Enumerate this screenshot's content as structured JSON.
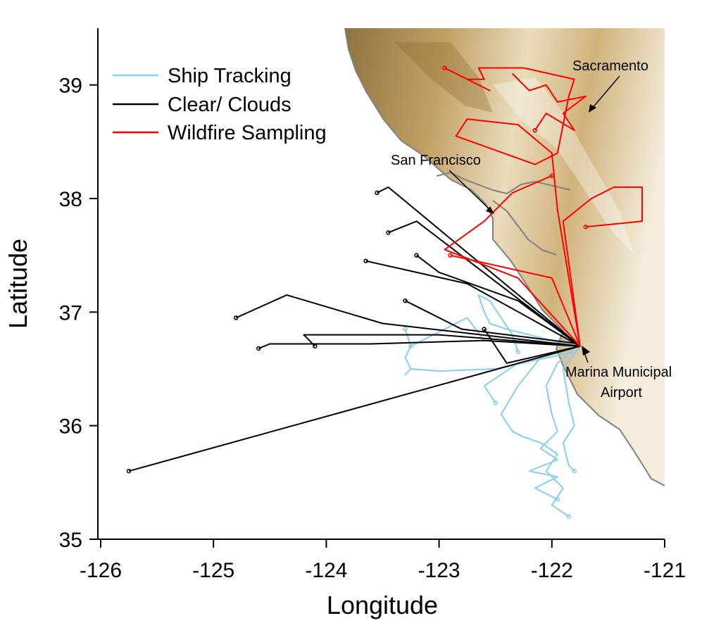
{
  "chart_data": {
    "type": "line",
    "xlabel": "Longitude",
    "ylabel": "Latitude",
    "xlim": [
      -126,
      -121
    ],
    "ylim": [
      35,
      39.5
    ],
    "xticks": [
      -126,
      -125,
      -124,
      -123,
      -122,
      -121
    ],
    "yticks": [
      35,
      36,
      37,
      38,
      39
    ],
    "xtick_labels": [
      "-126",
      "-125",
      "-124",
      "-123",
      "-122",
      "-121"
    ],
    "ytick_labels": [
      "35",
      "36",
      "37",
      "38",
      "39"
    ],
    "legend_position": "top-left",
    "series": [
      {
        "name": "Ship Tracking",
        "color": "#87ceeb",
        "tracks": [
          [
            [
              -121.75,
              36.7
            ],
            [
              -122.1,
              36.6
            ],
            [
              -122.3,
              36.35
            ],
            [
              -122.45,
              36.1
            ],
            [
              -122.35,
              35.95
            ],
            [
              -122.25,
              35.9
            ],
            [
              -122.1,
              35.85
            ],
            [
              -121.95,
              35.75
            ],
            [
              -122.05,
              35.6
            ],
            [
              -121.9,
              35.45
            ],
            [
              -122.0,
              35.3
            ],
            [
              -121.85,
              35.2
            ]
          ],
          [
            [
              -121.8,
              36.68
            ],
            [
              -121.95,
              36.55
            ],
            [
              -122.05,
              36.35
            ],
            [
              -122.0,
              36.1
            ],
            [
              -121.95,
              35.95
            ],
            [
              -122.1,
              35.8
            ],
            [
              -121.95,
              35.7
            ],
            [
              -122.2,
              35.6
            ],
            [
              -121.95,
              35.55
            ],
            [
              -122.15,
              35.45
            ],
            [
              -121.95,
              35.35
            ]
          ],
          [
            [
              -121.75,
              36.7
            ],
            [
              -121.9,
              36.5
            ],
            [
              -121.85,
              36.2
            ],
            [
              -121.8,
              36.0
            ],
            [
              -121.9,
              35.85
            ],
            [
              -121.85,
              35.65
            ],
            [
              -121.8,
              35.6
            ]
          ],
          [
            [
              -121.8,
              36.7
            ],
            [
              -122.4,
              36.85
            ],
            [
              -122.55,
              36.9
            ],
            [
              -122.6,
              37.0
            ],
            [
              -122.65,
              37.15
            ],
            [
              -122.55,
              37.1
            ],
            [
              -122.45,
              36.95
            ],
            [
              -122.35,
              36.8
            ],
            [
              -122.3,
              36.65
            ]
          ],
          [
            [
              -121.8,
              36.7
            ],
            [
              -122.6,
              36.75
            ],
            [
              -122.75,
              36.95
            ],
            [
              -122.95,
              36.85
            ],
            [
              -123.15,
              36.75
            ],
            [
              -123.25,
              36.7
            ]
          ],
          [
            [
              -121.8,
              36.65
            ],
            [
              -122.5,
              36.5
            ],
            [
              -123.0,
              36.48
            ],
            [
              -123.25,
              36.5
            ],
            [
              -123.3,
              36.45
            ],
            [
              -123.25,
              36.5
            ],
            [
              -123.3,
              36.6
            ],
            [
              -123.25,
              36.7
            ],
            [
              -123.3,
              36.85
            ]
          ],
          [
            [
              -121.8,
              36.68
            ],
            [
              -122.3,
              36.55
            ],
            [
              -122.6,
              36.35
            ],
            [
              -122.5,
              36.2
            ]
          ]
        ]
      },
      {
        "name": "Clear/ Clouds",
        "color": "#000000",
        "tracks": [
          [
            [
              -121.75,
              36.7
            ],
            [
              -125.75,
              35.6
            ]
          ],
          [
            [
              -121.75,
              36.7
            ],
            [
              -123.45,
              38.1
            ],
            [
              -123.55,
              38.05
            ]
          ],
          [
            [
              -121.75,
              36.7
            ],
            [
              -123.2,
              37.8
            ],
            [
              -123.45,
              37.7
            ]
          ],
          [
            [
              -121.75,
              36.7
            ],
            [
              -122.75,
              37.25
            ],
            [
              -123.65,
              37.45
            ]
          ],
          [
            [
              -121.75,
              36.7
            ],
            [
              -123.5,
              36.9
            ],
            [
              -124.35,
              37.15
            ],
            [
              -124.8,
              36.95
            ]
          ],
          [
            [
              -121.75,
              36.7
            ],
            [
              -122.6,
              36.75
            ],
            [
              -123.6,
              36.72
            ],
            [
              -124.5,
              36.72
            ],
            [
              -124.6,
              36.68
            ]
          ],
          [
            [
              -121.75,
              36.7
            ],
            [
              -123.0,
              36.8
            ],
            [
              -124.2,
              36.8
            ],
            [
              -124.1,
              36.7
            ]
          ],
          [
            [
              -121.75,
              36.72
            ],
            [
              -122.8,
              36.85
            ],
            [
              -123.3,
              37.1
            ]
          ],
          [
            [
              -121.75,
              36.7
            ],
            [
              -122.4,
              36.55
            ],
            [
              -122.6,
              36.85
            ]
          ],
          [
            [
              -121.75,
              36.7
            ],
            [
              -122.3,
              37.1
            ],
            [
              -123.0,
              37.35
            ],
            [
              -123.2,
              37.5
            ]
          ]
        ]
      },
      {
        "name": "Wildfire Sampling",
        "color": "#ff0000",
        "tracks": [
          [
            [
              -121.75,
              36.7
            ],
            [
              -121.95,
              37.9
            ],
            [
              -122.0,
              38.4
            ],
            [
              -122.3,
              38.65
            ],
            [
              -122.75,
              38.7
            ],
            [
              -122.85,
              38.55
            ],
            [
              -122.15,
              38.3
            ],
            [
              -121.95,
              38.4
            ],
            [
              -121.85,
              38.9
            ],
            [
              -121.8,
              39.05
            ],
            [
              -122.25,
              39.15
            ],
            [
              -122.65,
              39.15
            ],
            [
              -122.6,
              39.05
            ],
            [
              -122.75,
              39.05
            ],
            [
              -122.55,
              38.95
            ],
            [
              -122.95,
              39.15
            ]
          ],
          [
            [
              -121.75,
              36.7
            ],
            [
              -121.9,
              37.8
            ],
            [
              -121.65,
              38.0
            ],
            [
              -121.45,
              38.1
            ],
            [
              -121.2,
              38.1
            ],
            [
              -121.2,
              37.8
            ],
            [
              -121.7,
              37.75
            ]
          ],
          [
            [
              -121.75,
              36.7
            ],
            [
              -122.3,
              37.3
            ],
            [
              -122.95,
              37.55
            ],
            [
              -122.6,
              37.8
            ],
            [
              -122.35,
              38.05
            ],
            [
              -122.0,
              38.2
            ]
          ],
          [
            [
              -121.75,
              36.7
            ],
            [
              -122.0,
              37.3
            ],
            [
              -122.9,
              37.5
            ]
          ],
          [
            [
              -122.35,
              39.1
            ],
            [
              -122.2,
              38.95
            ],
            [
              -122.05,
              39.0
            ],
            [
              -121.95,
              38.85
            ],
            [
              -121.7,
              38.9
            ],
            [
              -121.9,
              38.75
            ],
            [
              -121.8,
              38.6
            ],
            [
              -122.05,
              38.75
            ],
            [
              -122.15,
              38.6
            ]
          ]
        ]
      }
    ]
  },
  "legend": {
    "items": [
      "Ship Tracking",
      "Clear/ Clouds",
      "Wildfire Sampling"
    ]
  },
  "annotations": {
    "sacramento": "Sacramento",
    "san_francisco": "San Francisco",
    "airport_line1": "Marina Municipal",
    "airport_line2": "Airport"
  },
  "terrain": {
    "coast_color": "#808080",
    "light_color": "#e8dcc0",
    "mid_color": "#c8a868",
    "dark_color": "#8b6a2b"
  }
}
